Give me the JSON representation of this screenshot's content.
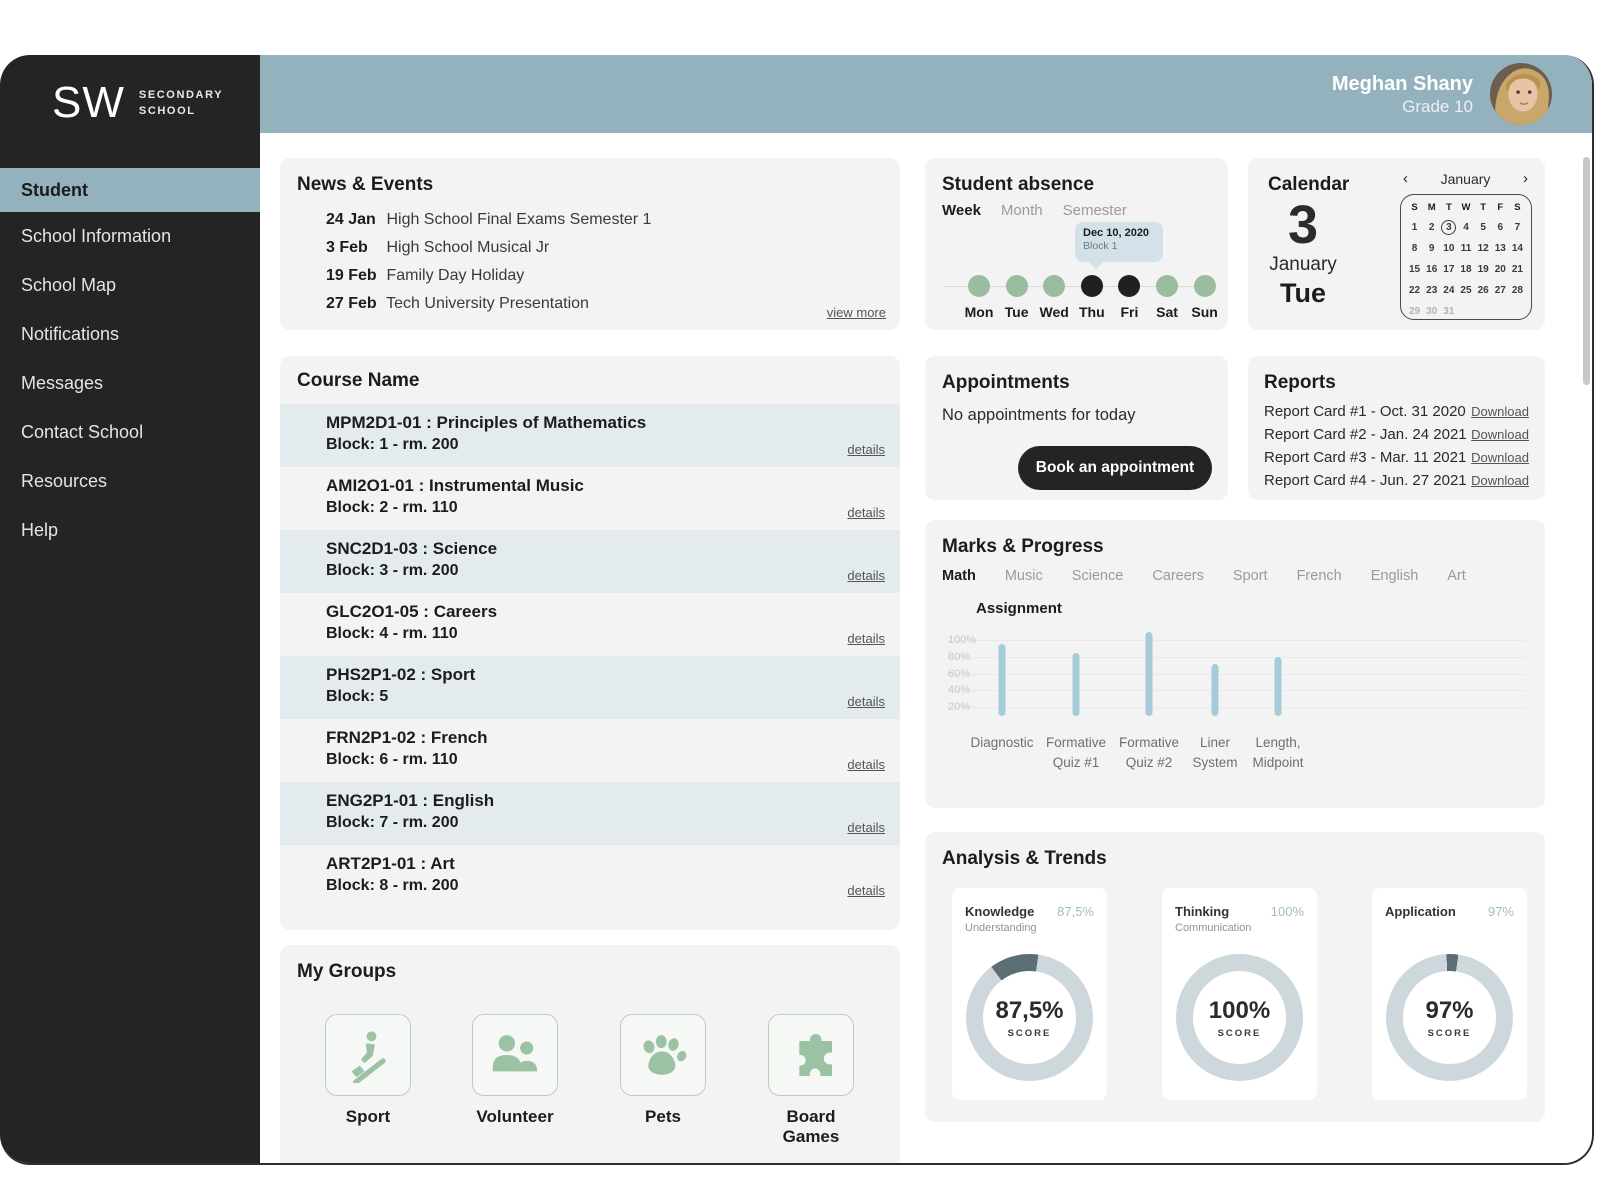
{
  "school": {
    "logo": "SW",
    "name_line1": "Secondary",
    "name_line2": "School"
  },
  "sidebar": {
    "items": [
      {
        "label": "Student",
        "active": true
      },
      {
        "label": "School Information",
        "active": false
      },
      {
        "label": "School Map",
        "active": false
      },
      {
        "label": "Notifications",
        "active": false
      },
      {
        "label": "Messages",
        "active": false
      },
      {
        "label": "Contact School",
        "active": false
      },
      {
        "label": "Resources",
        "active": false
      },
      {
        "label": "Help",
        "active": false
      }
    ]
  },
  "header": {
    "user_name": "Meghan Shany",
    "user_grade": "Grade 10"
  },
  "news": {
    "title": "News & Events",
    "view_more": "view more",
    "items": [
      {
        "date": "24 Jan",
        "text": "High School Final Exams Semester 1"
      },
      {
        "date": "3 Feb",
        "text": "High School Musical Jr"
      },
      {
        "date": "19 Feb",
        "text": "Family Day  Holiday"
      },
      {
        "date": "27 Feb",
        "text": "Tech University Presentation"
      }
    ]
  },
  "absence": {
    "title": "Student absence",
    "tabs": [
      "Week",
      "Month",
      "Semester"
    ],
    "active_tab": "Week",
    "tooltip": {
      "date": "Dec 10, 2020",
      "block": "Block 1"
    },
    "tooltip_day_index": 3,
    "days": [
      {
        "label": "Mon",
        "absent": false
      },
      {
        "label": "Tue",
        "absent": false
      },
      {
        "label": "Wed",
        "absent": false
      },
      {
        "label": "Thu",
        "absent": true
      },
      {
        "label": "Fri",
        "absent": true
      },
      {
        "label": "Sat",
        "absent": false
      },
      {
        "label": "Sun",
        "absent": false
      }
    ]
  },
  "calendar": {
    "title": "Calendar",
    "day_number": "3",
    "month": "January",
    "weekday": "Tue",
    "mini": {
      "month": "January",
      "prev": "‹",
      "next": "›",
      "day_headers": [
        "S",
        "M",
        "T",
        "W",
        "T",
        "F",
        "S"
      ],
      "weeks": [
        [
          1,
          2,
          3,
          4,
          5,
          6,
          7
        ],
        [
          8,
          9,
          10,
          11,
          12,
          13,
          14
        ],
        [
          15,
          16,
          17,
          18,
          19,
          20,
          21
        ],
        [
          22,
          23,
          24,
          25,
          26,
          27,
          28
        ],
        [
          29,
          30,
          31
        ]
      ],
      "selected_day": 3,
      "muted_days": [
        29,
        30,
        31
      ]
    }
  },
  "courses": {
    "title": "Course Name",
    "details_label": "details",
    "items": [
      {
        "title": "MPM2D1-01 : Principles of Mathematics",
        "block": "Block: 1 - rm. 200"
      },
      {
        "title": "AMI2O1-01 : Instrumental Music",
        "block": "Block: 2 - rm. 110"
      },
      {
        "title": "SNC2D1-03 : Science",
        "block": "Block: 3 - rm. 200"
      },
      {
        "title": "GLC2O1-05 : Careers",
        "block": "Block: 4 - rm. 110"
      },
      {
        "title": "PHS2P1-02 : Sport",
        "block": "Block: 5"
      },
      {
        "title": "FRN2P1-02 : French",
        "block": "Block: 6 - rm. 110"
      },
      {
        "title": "ENG2P1-01 : English",
        "block": "Block: 7 - rm. 200"
      },
      {
        "title": "ART2P1-01 : Art",
        "block": "Block: 8 - rm. 200"
      }
    ]
  },
  "appointments": {
    "title": "Appointments",
    "empty_text": "No appointments for today",
    "button_label": "Book an appointment"
  },
  "reports": {
    "title": "Reports",
    "download_label": "Download",
    "items": [
      "Report Card #1 - Oct. 31 2020",
      "Report Card #2 - Jan. 24 2021",
      "Report Card #3 - Mar. 11 2021",
      "Report Card #4 - Jun. 27 2021"
    ]
  },
  "marks": {
    "title": "Marks & Progress",
    "tabs": [
      "Math",
      "Music",
      "Science",
      "Careers",
      "Sport",
      "French",
      "English",
      "Art"
    ],
    "active_tab": "Math"
  },
  "chart_data": {
    "type": "bar",
    "title": "Assignment",
    "categories": [
      "Diagnostic",
      "Formative\nQuiz #1",
      "Formative\nQuiz #2",
      "Liner\nSystem",
      "Length,\nMidpoint"
    ],
    "values": [
      95,
      85,
      110,
      72,
      80
    ],
    "xlabel": "",
    "ylabel": "",
    "yticks": [
      20,
      40,
      60,
      80,
      100
    ],
    "ytick_labels": [
      "20%",
      "40%",
      "60%",
      "80%",
      "100%"
    ],
    "ylim": [
      0,
      115
    ],
    "grid": true,
    "bar_color": "#a6cbd8"
  },
  "groups": {
    "title": "My Groups",
    "items": [
      {
        "label": "Sport",
        "icon": "rowing-icon"
      },
      {
        "label": "Volunteer",
        "icon": "people-icon"
      },
      {
        "label": "Pets",
        "icon": "paw-icon"
      },
      {
        "label": "Board Games",
        "icon": "puzzle-icon"
      }
    ]
  },
  "analysis": {
    "title": "Analysis & Trends",
    "score_label": "SCORE",
    "cards": [
      {
        "title": "Knowledge",
        "subtitle": "Understanding",
        "percent_label": "87,5%",
        "center_label": "87,5%",
        "value": 87.5
      },
      {
        "title": "Thinking",
        "subtitle": "Communication",
        "percent_label": "100%",
        "center_label": "100%",
        "value": 100
      },
      {
        "title": "Application",
        "subtitle": "",
        "percent_label": "97%",
        "center_label": "97%",
        "value": 97
      }
    ]
  },
  "colors": {
    "accent_teal": "#93b2bd",
    "sidebar_dark": "#242424",
    "present_green": "#9abd9f",
    "absent_dark": "#1f2121",
    "bar_blue": "#a6cbd8",
    "ring_light": "#ced7dc",
    "ring_dark": "#5b6e74",
    "percent_green": "#a2c3a8",
    "row_tint": "#e3ebee",
    "card_gray": "#f3f3f3"
  }
}
